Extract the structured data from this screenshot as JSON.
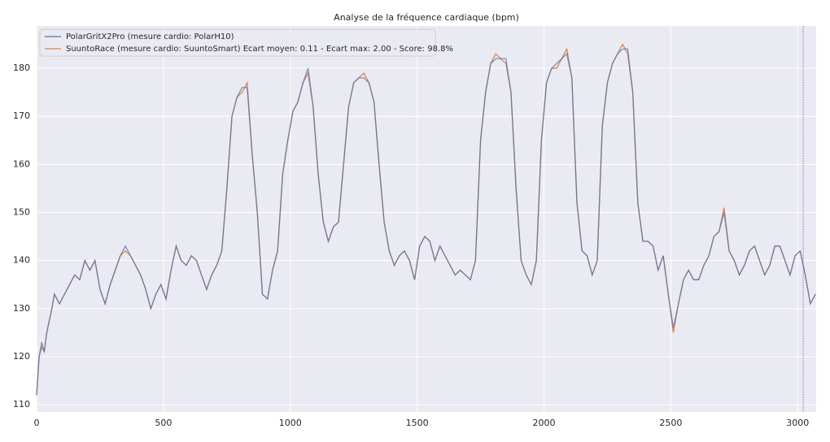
{
  "chart_data": {
    "type": "line",
    "title": "Analyse de la fréquence cardiaque (bpm)",
    "x": [
      0,
      10,
      20,
      30,
      40,
      60,
      70,
      90,
      110,
      130,
      150,
      170,
      190,
      210,
      230,
      250,
      270,
      290,
      310,
      330,
      350,
      370,
      390,
      410,
      430,
      450,
      470,
      490,
      510,
      530,
      550,
      570,
      590,
      610,
      630,
      650,
      670,
      690,
      710,
      730,
      750,
      770,
      790,
      810,
      830,
      850,
      870,
      890,
      910,
      930,
      950,
      970,
      990,
      1010,
      1030,
      1050,
      1070,
      1090,
      1110,
      1130,
      1150,
      1170,
      1190,
      1210,
      1230,
      1250,
      1270,
      1290,
      1310,
      1330,
      1350,
      1370,
      1390,
      1410,
      1430,
      1450,
      1470,
      1490,
      1510,
      1530,
      1550,
      1570,
      1590,
      1610,
      1630,
      1650,
      1670,
      1690,
      1710,
      1730,
      1750,
      1770,
      1790,
      1810,
      1830,
      1850,
      1870,
      1890,
      1910,
      1930,
      1950,
      1970,
      1990,
      2010,
      2030,
      2050,
      2070,
      2090,
      2110,
      2130,
      2150,
      2170,
      2190,
      2210,
      2230,
      2250,
      2270,
      2290,
      2310,
      2330,
      2350,
      2370,
      2390,
      2410,
      2430,
      2450,
      2470,
      2490,
      2510,
      2530,
      2550,
      2570,
      2590,
      2610,
      2630,
      2650,
      2670,
      2690,
      2710,
      2730,
      2750,
      2770,
      2790,
      2810,
      2830,
      2850,
      2870,
      2890,
      2910,
      2930,
      2950,
      2970,
      2990,
      3010,
      3030,
      3050,
      3070
    ],
    "series": [
      {
        "name": "SuuntoRace (mesure cardio: SuuntoSmart) Ecart moyen: 0.11 - Ecart max: 2.00 - Score: 98.8%",
        "color": "#dd8452",
        "values": [
          112,
          120,
          122,
          121,
          125,
          130,
          133,
          131,
          133,
          135,
          137,
          136,
          140,
          138,
          140,
          134,
          131,
          135,
          138,
          141,
          142,
          141,
          139,
          137,
          134,
          130,
          133,
          135,
          132,
          138,
          143,
          140,
          139,
          141,
          140,
          137,
          134,
          137,
          139,
          142,
          155,
          170,
          174,
          175,
          177,
          162,
          150,
          133,
          132,
          138,
          142,
          158,
          165,
          171,
          173,
          177,
          179,
          172,
          158,
          148,
          144,
          147,
          148,
          160,
          172,
          177,
          178,
          179,
          177,
          173,
          160,
          148,
          142,
          139,
          141,
          142,
          140,
          136,
          143,
          145,
          144,
          140,
          143,
          141,
          139,
          137,
          138,
          137,
          136,
          140,
          165,
          175,
          181,
          183,
          182,
          181,
          175,
          155,
          140,
          137,
          135,
          140,
          165,
          177,
          180,
          180,
          182,
          184,
          178,
          152,
          142,
          141,
          137,
          140,
          168,
          177,
          181,
          183,
          185,
          183,
          175,
          152,
          144,
          144,
          143,
          138,
          141,
          133,
          125,
          131,
          136,
          138,
          136,
          136,
          139,
          141,
          145,
          146,
          151,
          142,
          140,
          137,
          139,
          142,
          143,
          140,
          137,
          139,
          143,
          143,
          140,
          137,
          141,
          142,
          137,
          131,
          133
        ]
      },
      {
        "name": "PolarGritX2Pro (mesure cardio: PolarH10)",
        "color": "#4c72b0",
        "values": [
          112,
          120,
          123,
          121,
          125,
          130,
          133,
          131,
          133,
          135,
          137,
          136,
          140,
          138,
          140,
          134,
          131,
          135,
          138,
          141,
          143,
          141,
          139,
          137,
          134,
          130,
          133,
          135,
          132,
          138,
          143,
          140,
          139,
          141,
          140,
          137,
          134,
          137,
          139,
          142,
          155,
          170,
          174,
          176,
          176,
          162,
          150,
          133,
          132,
          138,
          142,
          158,
          165,
          171,
          173,
          177,
          180,
          172,
          158,
          148,
          144,
          147,
          148,
          160,
          172,
          177,
          178,
          178,
          177,
          173,
          160,
          148,
          142,
          139,
          141,
          142,
          140,
          136,
          143,
          145,
          144,
          140,
          143,
          141,
          139,
          137,
          138,
          137,
          136,
          140,
          165,
          175,
          181,
          182,
          182,
          182,
          175,
          155,
          140,
          137,
          135,
          140,
          165,
          177,
          180,
          181,
          182,
          183,
          178,
          152,
          142,
          141,
          137,
          140,
          168,
          177,
          181,
          183,
          184,
          184,
          175,
          152,
          144,
          144,
          143,
          138,
          141,
          133,
          126,
          131,
          136,
          138,
          136,
          136,
          139,
          141,
          145,
          146,
          150,
          142,
          140,
          137,
          139,
          142,
          143,
          140,
          137,
          139,
          143,
          143,
          140,
          137,
          141,
          142,
          137,
          131,
          133
        ]
      }
    ],
    "xlim": [
      0,
      3073
    ],
    "ylim": [
      108.5,
      188.8
    ],
    "xticks": [
      0,
      500,
      1000,
      1500,
      2000,
      2500,
      3000
    ],
    "yticks": [
      110,
      120,
      130,
      140,
      150,
      160,
      170,
      180
    ],
    "vline": 3022,
    "grid": true,
    "legend": "upper left"
  }
}
